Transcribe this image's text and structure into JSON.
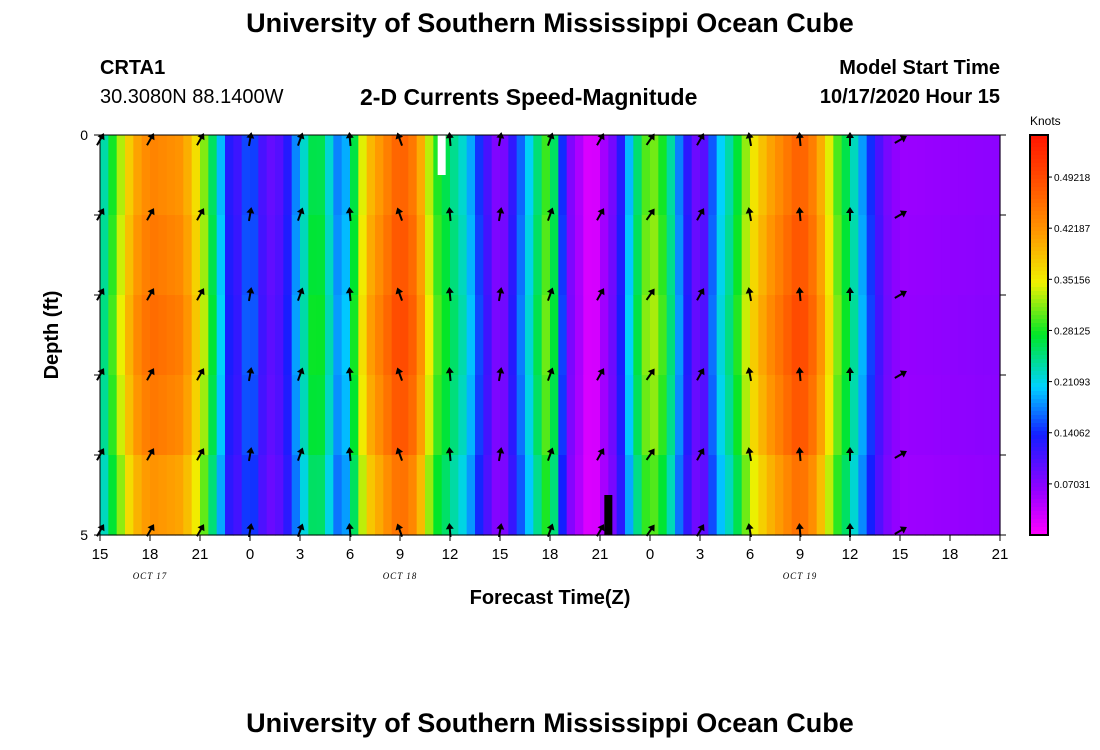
{
  "header": {
    "title": "University of Southern Mississippi Ocean Cube",
    "station": "CRTA1",
    "coords": "30.3080N 88.1400W",
    "subtitle": "2-D Currents Speed-Magnitude",
    "start_label": "Model Start Time",
    "start_value": "10/17/2020 Hour 15"
  },
  "footer": {
    "title": "University of Southern Mississippi Ocean Cube"
  },
  "chart_data": {
    "type": "heatmap",
    "title": "2-D Currents Speed-Magnitude",
    "xlabel": "Forecast Time(Z)",
    "ylabel": "Depth (ft)",
    "ylim": [
      0,
      5
    ],
    "x_start_hour": 15,
    "x_end_hour": 69,
    "x_ticks": [
      "15",
      "18",
      "21",
      "0",
      "3",
      "6",
      "9",
      "12",
      "15",
      "18",
      "21",
      "0",
      "3",
      "6",
      "9",
      "12",
      "15",
      "18",
      "21"
    ],
    "date_labels": [
      {
        "text": "OCT 17",
        "at_hour": 18
      },
      {
        "text": "OCT 18",
        "at_hour": 33
      },
      {
        "text": "OCT 19",
        "at_hour": 57
      }
    ],
    "y_ticks": [
      "0",
      "5"
    ],
    "colorbar": {
      "unit": "Knots",
      "min": 0,
      "max": 0.55,
      "ticks": [
        "0.49218",
        "0.42187",
        "0.35156",
        "0.28125",
        "0.21093",
        "0.14062",
        "0.07031"
      ],
      "tick_values": [
        0.49218,
        0.42187,
        0.35156,
        0.28125,
        0.21093,
        0.14062,
        0.07031
      ]
    },
    "speed_profile_keypoints": [
      {
        "t": 15,
        "v": 0.22
      },
      {
        "t": 16,
        "v": 0.32
      },
      {
        "t": 17,
        "v": 0.42
      },
      {
        "t": 18,
        "v": 0.46
      },
      {
        "t": 20,
        "v": 0.44
      },
      {
        "t": 21,
        "v": 0.36
      },
      {
        "t": 22,
        "v": 0.24
      },
      {
        "t": 23,
        "v": 0.1
      },
      {
        "t": 24,
        "v": 0.18
      },
      {
        "t": 25,
        "v": 0.09
      },
      {
        "t": 26,
        "v": 0.11
      },
      {
        "t": 27,
        "v": 0.21
      },
      {
        "t": 28,
        "v": 0.3
      },
      {
        "t": 29.5,
        "v": 0.16
      },
      {
        "t": 31,
        "v": 0.4
      },
      {
        "t": 33,
        "v": 0.5
      },
      {
        "t": 34,
        "v": 0.46
      },
      {
        "t": 35,
        "v": 0.31
      },
      {
        "t": 37,
        "v": 0.22
      },
      {
        "t": 38,
        "v": 0.13
      },
      {
        "t": 39,
        "v": 0.06
      },
      {
        "t": 41,
        "v": 0.24
      },
      {
        "t": 42,
        "v": 0.33
      },
      {
        "t": 43,
        "v": 0.09
      },
      {
        "t": 44.5,
        "v": 0.01
      },
      {
        "t": 46,
        "v": 0.1
      },
      {
        "t": 47,
        "v": 0.24
      },
      {
        "t": 48,
        "v": 0.34
      },
      {
        "t": 49,
        "v": 0.28
      },
      {
        "t": 50,
        "v": 0.15
      },
      {
        "t": 51,
        "v": 0.07
      },
      {
        "t": 52,
        "v": 0.2
      },
      {
        "t": 53,
        "v": 0.26
      },
      {
        "t": 54,
        "v": 0.36
      },
      {
        "t": 55,
        "v": 0.42
      },
      {
        "t": 57,
        "v": 0.5
      },
      {
        "t": 58,
        "v": 0.45
      },
      {
        "t": 59,
        "v": 0.33
      },
      {
        "t": 60,
        "v": 0.26
      },
      {
        "t": 61,
        "v": 0.17
      },
      {
        "t": 62,
        "v": 0.09
      },
      {
        "t": 63,
        "v": 0.06
      },
      {
        "t": 69,
        "v": 0.07
      }
    ],
    "arrow_hours": [
      15,
      18,
      21,
      24,
      27,
      30,
      33,
      36,
      39,
      42,
      45,
      48,
      51,
      54,
      57,
      60,
      63
    ],
    "arrow_depths": [
      0,
      1,
      2,
      3,
      4,
      5
    ],
    "arrow_directions_deg": [
      30,
      30,
      30,
      10,
      20,
      355,
      340,
      355,
      10,
      20,
      30,
      35,
      30,
      350,
      355,
      0,
      60
    ],
    "markers": [
      {
        "hour": 35.5,
        "depth_top": 0,
        "depth_bottom": 0.5,
        "color": "#ffffff"
      },
      {
        "hour": 45.5,
        "depth_top": 4.5,
        "depth_bottom": 5,
        "color": "#000000"
      }
    ]
  }
}
